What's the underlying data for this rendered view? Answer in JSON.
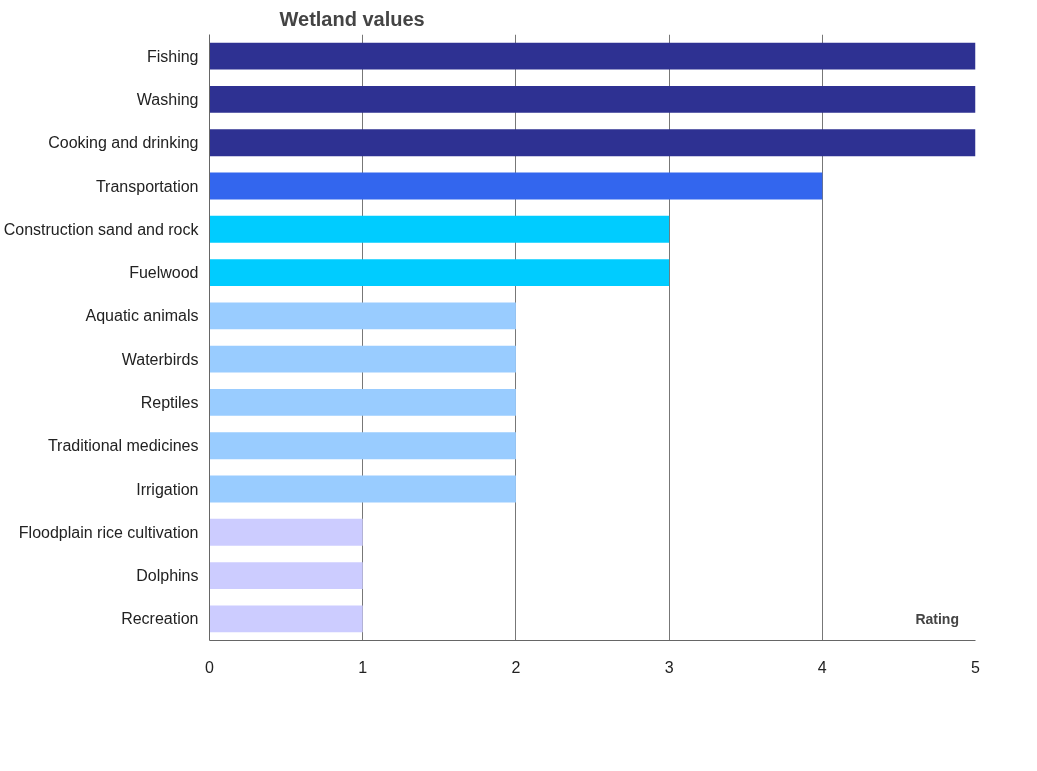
{
  "chart_data": {
    "type": "bar",
    "orientation": "horizontal",
    "title": "Wetland values",
    "xlabel": "Rating",
    "categories": [
      "Fishing",
      "Washing",
      "Cooking and drinking",
      "Transportation",
      "Construction sand and rock",
      "Fuelwood",
      "Aquatic animals",
      "Waterbirds",
      "Reptiles",
      "Traditional medicines",
      "Irrigation",
      "Floodplain rice cultivation",
      "Dolphins",
      "Recreation"
    ],
    "values": [
      5,
      5,
      5,
      4,
      3,
      3,
      2,
      2,
      2,
      2,
      2,
      1,
      1,
      1
    ],
    "colors": [
      "#2e3192",
      "#2e3192",
      "#2e3192",
      "#3366ee",
      "#00ccff",
      "#00ccff",
      "#99ccff",
      "#99ccff",
      "#99ccff",
      "#99ccff",
      "#99ccff",
      "#ccccff",
      "#ccccff",
      "#ccccff"
    ],
    "xlim": [
      0,
      5
    ],
    "xticks": [
      0,
      1,
      2,
      3,
      4,
      5
    ],
    "grid": "x"
  }
}
